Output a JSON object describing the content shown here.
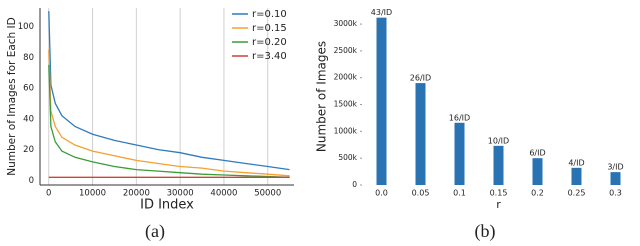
{
  "chart_data": [
    {
      "type": "line",
      "caption": "(a)",
      "x_label": "ID Index",
      "y_label": "Number of Images for Each ID",
      "x": [
        0,
        500,
        1500,
        3000,
        6000,
        10000,
        15000,
        20000,
        25000,
        30000,
        35000,
        40000,
        45000,
        50000,
        55000
      ],
      "series": [
        {
          "name": "r=0.10",
          "color": "#2f7bbd",
          "values": [
            110,
            62,
            50,
            42,
            35,
            30,
            26,
            23,
            20,
            18,
            15,
            13,
            11,
            9,
            7
          ]
        },
        {
          "name": "r=0.15",
          "color": "#f5a030",
          "values": [
            85,
            45,
            35,
            28,
            23,
            19,
            16,
            13,
            11,
            9,
            8,
            6,
            5,
            4,
            3
          ]
        },
        {
          "name": "r=0.20",
          "color": "#3a9c3a",
          "values": [
            75,
            35,
            25,
            19,
            15,
            12,
            9,
            7,
            6,
            5,
            4,
            3.5,
            3,
            2.5,
            2
          ]
        },
        {
          "name": "r=3.40",
          "color": "#d2403a",
          "values": [
            2,
            2,
            2,
            2,
            2,
            2,
            2,
            2,
            2,
            2,
            2,
            2,
            2,
            2,
            2
          ]
        }
      ],
      "xlim": [
        -2000,
        56000
      ],
      "ylim": [
        -3,
        112
      ],
      "xticks": [
        0,
        10000,
        20000,
        30000,
        40000,
        50000
      ],
      "yticks": [
        0,
        20,
        40,
        60,
        80,
        100
      ],
      "grid": "x",
      "legend": "upper right"
    },
    {
      "type": "bar",
      "caption": "(b)",
      "x_label": "r",
      "y_label": "Number of Images",
      "categories": [
        "0.0",
        "0.05",
        "0.1",
        "0.15",
        "0.2",
        "0.25",
        "0.3"
      ],
      "values": [
        3120000,
        1900000,
        1160000,
        730000,
        500000,
        320000,
        240000
      ],
      "annotations": [
        "43/ID",
        "26/ID",
        "16/ID",
        "10/ID",
        "6/ID",
        "4/ID",
        "3/ID"
      ],
      "color": "#2a73b3",
      "ylim": [
        0,
        3300000
      ],
      "yticks": [
        0,
        {
          "value": 500000,
          "label": "500k"
        },
        {
          "value": 1000000,
          "label": "1000k"
        },
        {
          "value": 1500000,
          "label": "1500k"
        },
        {
          "value": 2000000,
          "label": "2000k"
        },
        {
          "value": 2500000,
          "label": "2500k"
        },
        {
          "value": 3000000,
          "label": "3000k"
        }
      ]
    }
  ]
}
